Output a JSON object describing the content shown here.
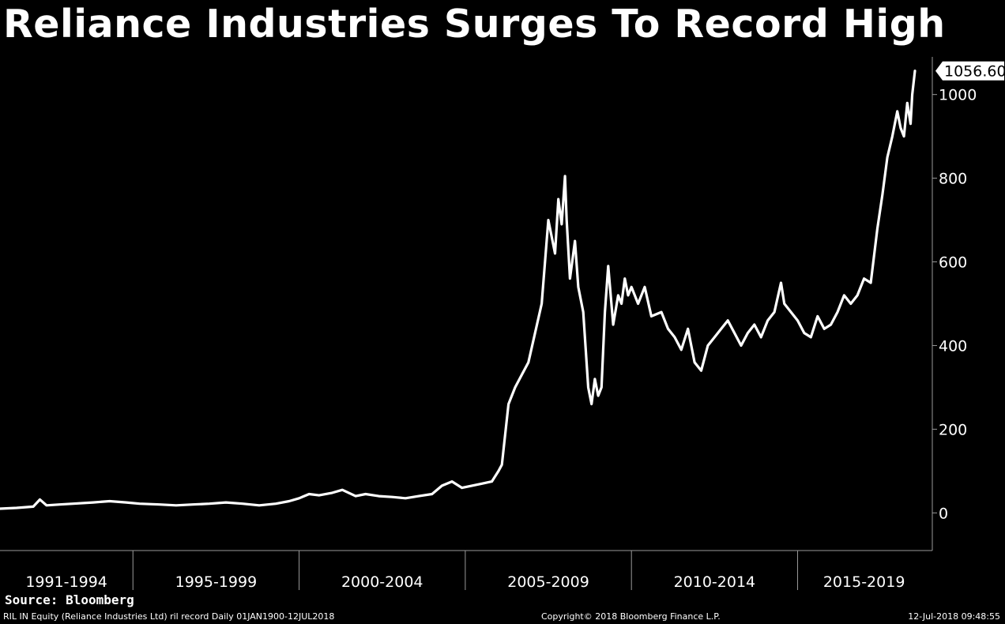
{
  "title": "Reliance Industries Surges To Record High",
  "source": "Source: Bloomberg",
  "footer": {
    "left": "RIL IN Equity (Reliance Industries Ltd) ril record  Daily 01JAN1900-12JUL2018",
    "center": "Copyright© 2018 Bloomberg Finance L.P.",
    "right": "12-Jul-2018 09:48:55"
  },
  "colors": {
    "background": "#000000",
    "line": "#ffffff",
    "text": "#ffffff",
    "axis": "#9a9a9a"
  },
  "chart_data": {
    "type": "line",
    "title": "Reliance Industries Surges To Record High",
    "xlabel": "",
    "ylabel": "",
    "ylim": [
      -90,
      1090
    ],
    "xlim": [
      1991.0,
      2018.53
    ],
    "yticks": [
      0,
      200,
      400,
      600,
      800,
      1000
    ],
    "ytick_labels": [
      "0",
      "200",
      "400",
      "600",
      "800",
      "1000"
    ],
    "x_period_labels": [
      "1991-1994",
      "1995-1999",
      "2000-2004",
      "2005-2009",
      "2010-2014",
      "2015-2019"
    ],
    "x_period_bounds": [
      [
        1991.0,
        1995.0
      ],
      [
        1995.0,
        2000.0
      ],
      [
        2000.0,
        2005.0
      ],
      [
        2005.0,
        2010.0
      ],
      [
        2010.0,
        2015.0
      ],
      [
        2015.0,
        2019.0
      ]
    ],
    "last_value_label": "1056.60",
    "grid": false,
    "legend": "none",
    "series": [
      {
        "x": [
          1991.0,
          1991.5,
          1992.0,
          1992.2,
          1992.4,
          1992.8,
          1993.2,
          1993.8,
          1994.3,
          1994.8,
          1995.2,
          1995.8,
          1996.3,
          1996.8,
          1997.3,
          1997.8,
          1998.3,
          1998.8,
          1999.3,
          1999.7,
          2000.0,
          2000.3,
          2000.6,
          2001.0,
          2001.3,
          2001.7,
          2002.0,
          2002.4,
          2002.8,
          2003.2,
          2003.6,
          2004.0,
          2004.3,
          2004.6,
          2004.9,
          2005.2,
          2005.5,
          2005.8,
          2006.0,
          2006.1,
          2006.3,
          2006.5,
          2006.7,
          2006.9,
          2007.1,
          2007.3,
          2007.5,
          2007.7,
          2007.8,
          2007.9,
          2008.0,
          2008.05,
          2008.15,
          2008.3,
          2008.4,
          2008.55,
          2008.7,
          2008.8,
          2008.9,
          2009.0,
          2009.1,
          2009.2,
          2009.3,
          2009.45,
          2009.6,
          2009.7,
          2009.8,
          2009.9,
          2010.0,
          2010.2,
          2010.4,
          2010.6,
          2010.9,
          2011.1,
          2011.3,
          2011.5,
          2011.7,
          2011.9,
          2012.1,
          2012.3,
          2012.5,
          2012.7,
          2012.9,
          2013.1,
          2013.3,
          2013.5,
          2013.7,
          2013.9,
          2014.1,
          2014.3,
          2014.5,
          2014.6,
          2014.8,
          2015.0,
          2015.2,
          2015.4,
          2015.6,
          2015.8,
          2016.0,
          2016.2,
          2016.4,
          2016.6,
          2016.8,
          2017.0,
          2017.2,
          2017.4,
          2017.55,
          2017.7,
          2017.85,
          2018.0,
          2018.1,
          2018.2,
          2018.3,
          2018.4,
          2018.45,
          2018.53
        ],
        "y": [
          10,
          12,
          15,
          32,
          18,
          20,
          22,
          25,
          28,
          25,
          22,
          20,
          18,
          20,
          22,
          25,
          22,
          18,
          22,
          28,
          35,
          45,
          42,
          48,
          55,
          40,
          45,
          40,
          38,
          35,
          40,
          45,
          65,
          75,
          60,
          65,
          70,
          75,
          100,
          115,
          260,
          300,
          330,
          360,
          430,
          500,
          700,
          620,
          750,
          690,
          805,
          700,
          560,
          650,
          540,
          480,
          300,
          260,
          320,
          280,
          300,
          480,
          590,
          450,
          520,
          500,
          560,
          520,
          540,
          500,
          540,
          470,
          480,
          440,
          420,
          390,
          440,
          360,
          340,
          400,
          420,
          440,
          460,
          430,
          400,
          430,
          450,
          420,
          460,
          480,
          550,
          500,
          480,
          460,
          430,
          420,
          470,
          440,
          450,
          480,
          520,
          500,
          520,
          560,
          550,
          680,
          760,
          850,
          900,
          960,
          920,
          900,
          980,
          930,
          1000,
          1056.6
        ]
      }
    ]
  }
}
